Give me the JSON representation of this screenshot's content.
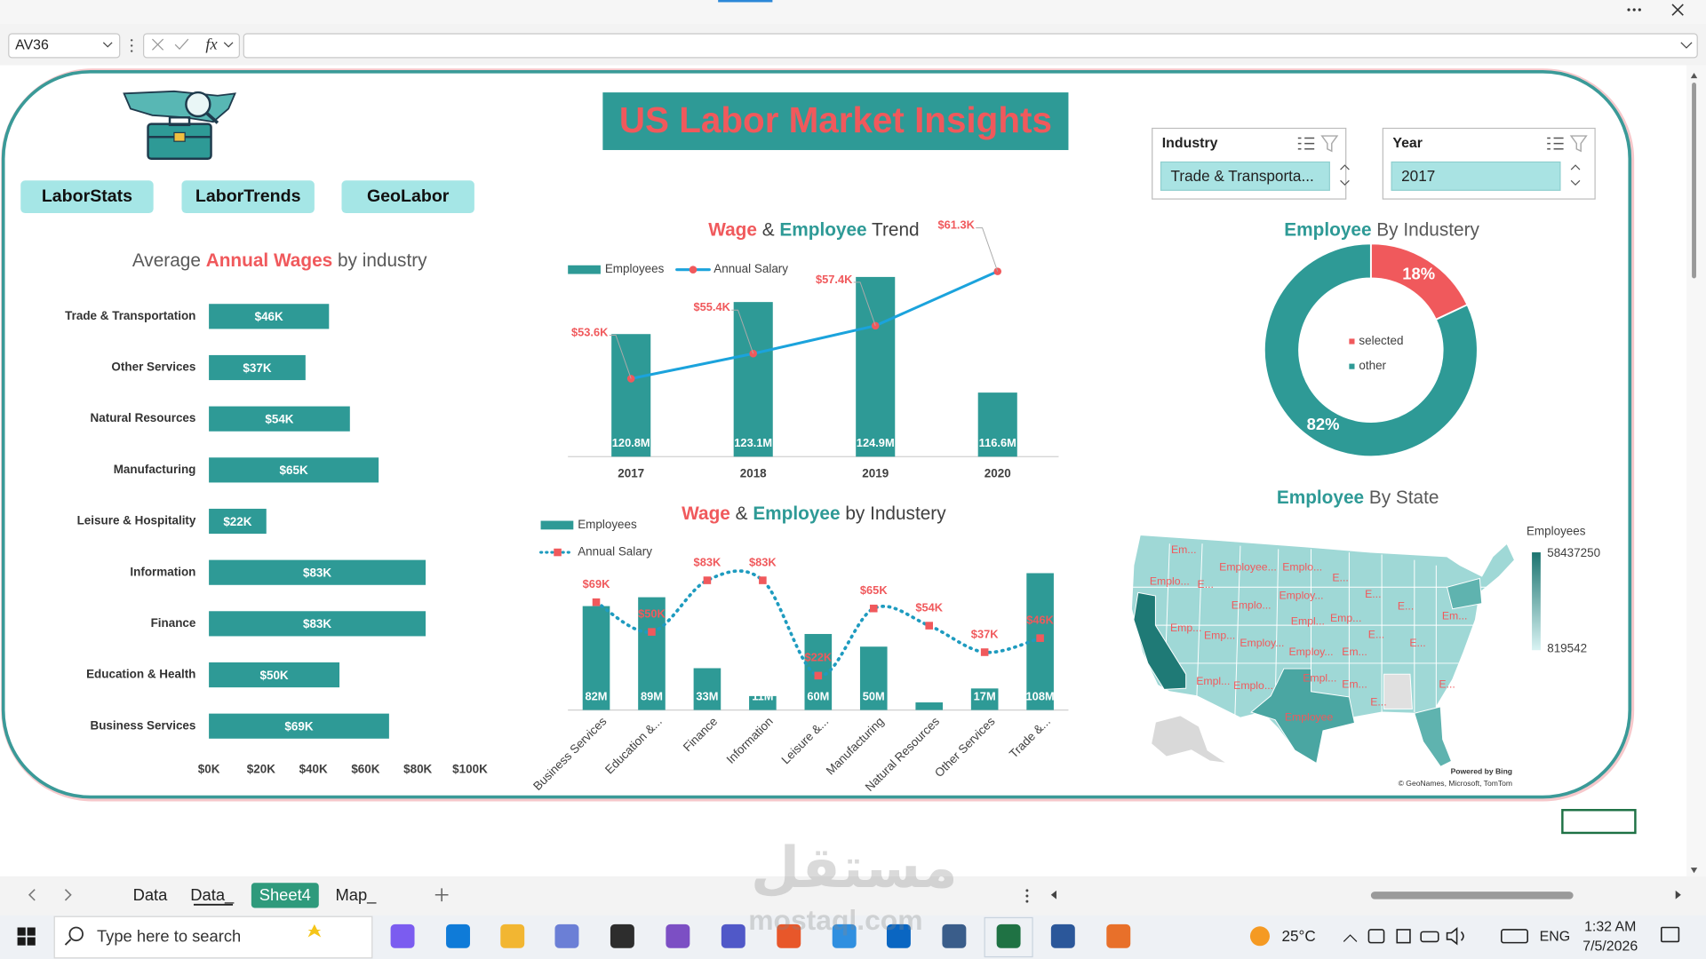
{
  "excel": {
    "name_box": "AV36",
    "formula_icon": "fx",
    "sheets": [
      "Data",
      "Data_",
      "Sheet4",
      "Map_"
    ],
    "active_sheet": 2
  },
  "dashboard": {
    "title": "US Labor Market Insights",
    "buttons": [
      "LaborStats",
      "LaborTrends",
      "GeoLabor"
    ],
    "slicers": [
      {
        "title": "Industry",
        "selected": "Trade & Transporta..."
      },
      {
        "title": "Year",
        "selected": "2017"
      }
    ]
  },
  "chart_data": [
    {
      "type": "bar",
      "orientation": "horizontal",
      "title": [
        "Average ",
        "Annual Wages",
        " by industry"
      ],
      "title_colors": [
        "#595959",
        "#f0595c",
        "#595959"
      ],
      "categories": [
        "Trade & Transportation",
        "Other Services",
        "Natural Resources",
        "Manufacturing",
        "Leisure & Hospitality",
        "Information",
        "Finance",
        "Education & Health",
        "Business Services"
      ],
      "values": [
        46,
        37,
        54,
        65,
        22,
        83,
        83,
        50,
        69
      ],
      "value_labels": [
        "$46K",
        "$37K",
        "$54K",
        "$65K",
        "$22K",
        "$83K",
        "$83K",
        "$50K",
        "$69K"
      ],
      "color": "#2e9a96",
      "xlim": [
        0,
        100
      ],
      "xticks": [
        {
          "value": 0,
          "label": "$0K"
        },
        {
          "value": 20,
          "label": "$20K"
        },
        {
          "value": 40,
          "label": "$40K"
        },
        {
          "value": 60,
          "label": "$60K"
        },
        {
          "value": 80,
          "label": "$80K"
        },
        {
          "value": 100,
          "label": "$100K"
        }
      ]
    },
    {
      "type": "combo",
      "title": [
        "Wage",
        " & ",
        "Employee",
        " Trend"
      ],
      "title_colors": [
        "#f0595c",
        "#404040",
        "#2e9a96",
        "#404040"
      ],
      "categories": [
        "2017",
        "2018",
        "2019",
        "2020"
      ],
      "series": [
        {
          "name": "Employees",
          "type": "bar",
          "color": "#2e9a96",
          "values": [
            120.8,
            123.1,
            124.9,
            116.6
          ],
          "value_labels": [
            "120.8M",
            "123.1M",
            "124.9M",
            "116.6M"
          ]
        },
        {
          "name": "Annual Salary",
          "type": "line",
          "axis": "y2",
          "color": "#1ba3dc",
          "marker": "circle",
          "marker_color": "#f0595c",
          "values": [
            53.6,
            55.4,
            57.4,
            61.3
          ],
          "value_labels": [
            "$53.6K",
            "$55.4K",
            "$57.4K",
            "$61.3K"
          ]
        }
      ],
      "ylim": [
        112,
        128
      ],
      "y2lim": [
        48,
        64
      ],
      "legend": "top"
    },
    {
      "type": "combo",
      "title": [
        "Wage",
        " & ",
        "Employee",
        " by Industery"
      ],
      "title_colors": [
        "#f0595c",
        "#404040",
        "#2e9a96",
        "#404040"
      ],
      "categories": [
        "Business Services",
        "Education &...",
        "Finance",
        "Information",
        "Leisure &...",
        "Manufacturing",
        "Natural Resources",
        "Other Services",
        "Trade &..."
      ],
      "series": [
        {
          "name": "Employees",
          "type": "bar",
          "color": "#2e9a96",
          "values": [
            82,
            89,
            33,
            11,
            60,
            50,
            6,
            17,
            108
          ],
          "value_labels": [
            "82M",
            "89M",
            "33M",
            "11M",
            "60M",
            "50M",
            null,
            "17M",
            "108M"
          ]
        },
        {
          "name": "Annual Salary",
          "type": "line",
          "axis": "y2",
          "color": "#1e9bbf",
          "smooth": true,
          "dashed": true,
          "marker": "square",
          "marker_color": "#f0595c",
          "values": [
            69,
            50,
            83,
            83,
            22,
            65,
            54,
            37,
            46
          ],
          "value_labels": [
            "$69K",
            "$50K",
            "$83K",
            "$83K",
            "$22K",
            "$65K",
            "$54K",
            "$37K",
            "$46K"
          ]
        }
      ],
      "ylim": [
        0,
        127
      ],
      "y2lim": [
        0,
        103
      ],
      "legend": "top-left"
    },
    {
      "type": "pie",
      "donut": true,
      "title": [
        "Employee",
        " By Industery"
      ],
      "title_colors": [
        "#2e9a96",
        "#595959"
      ],
      "categories": [
        "selected",
        "other"
      ],
      "values": [
        18,
        82
      ],
      "value_labels": [
        "18%",
        "82%"
      ],
      "colors": [
        "#f0595c",
        "#2e9a96"
      ]
    },
    {
      "type": "map",
      "title": [
        "Employee",
        " By State"
      ],
      "title_colors": [
        "#2e9a96",
        "#595959"
      ],
      "legend_title": "Employees",
      "scale_max": 58437250,
      "scale_min": 819542,
      "scale_colors": [
        "#1b7470",
        "#d9f3f3"
      ],
      "label_color": "#f0595c",
      "region_labels": [
        "Em...",
        "Employee...",
        "Emplo...",
        "E...",
        "Emplo...",
        "E...",
        "Emplo...",
        "Employ...",
        "E...",
        "E...",
        "Emp...",
        "Emp...",
        "Employ...",
        "Empl...",
        "Emp...",
        "E...",
        "Em...",
        "Employ...",
        "Em...",
        "E...",
        "Empl...",
        "Emplo...",
        "Empl...",
        "Em...",
        "E...",
        "E...",
        "Employee"
      ],
      "credits": [
        "Powered by Bing",
        "© GeoNames, Microsoft, TomTom"
      ]
    }
  ],
  "taskbar": {
    "search": "Type here to search",
    "weather": "25°C",
    "language": "ENG",
    "time": "1:32 AM",
    "date": "7/5/2026"
  },
  "watermark": {
    "arabic": "مستقل",
    "latin": "mostaql.com"
  }
}
